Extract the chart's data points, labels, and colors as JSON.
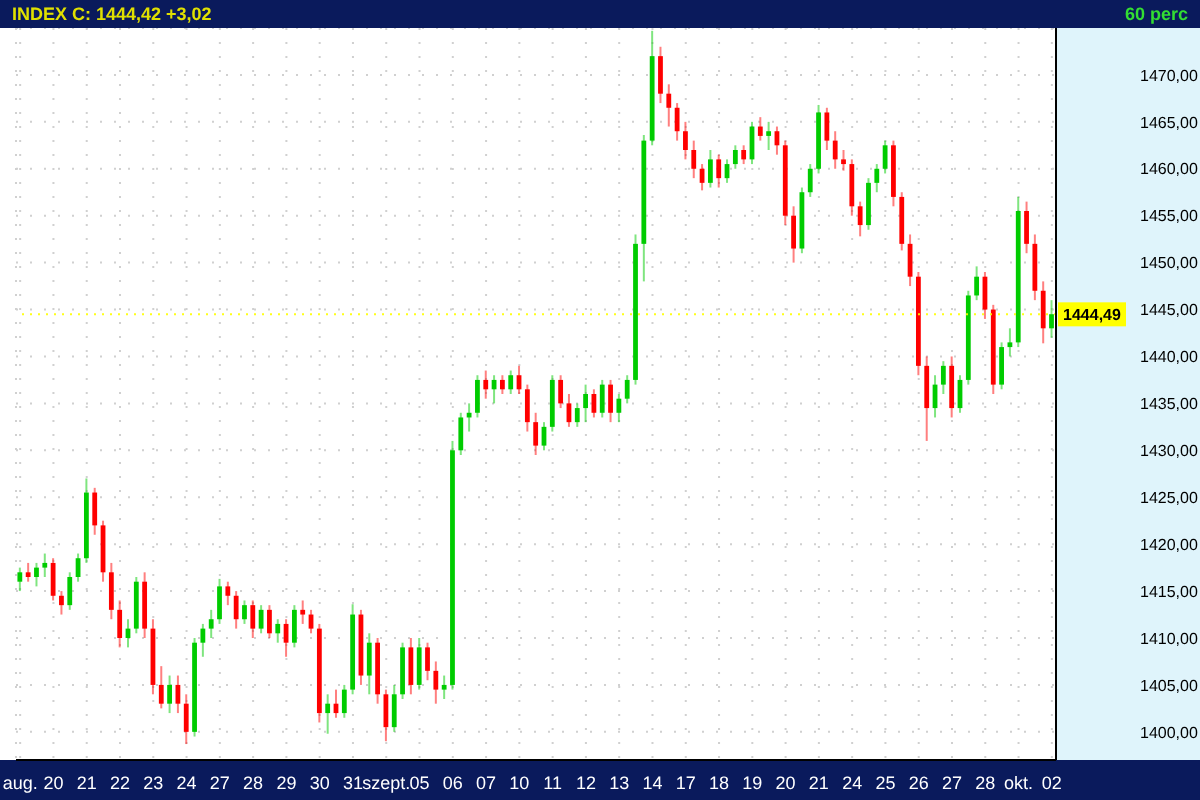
{
  "chart_data": {
    "type": "candlestick",
    "title": "INDEX C: 1444,42 +3,02",
    "subtitle": "60 perc",
    "categories": [
      "aug.",
      null,
      null,
      null,
      "20",
      null,
      null,
      null,
      "21",
      null,
      null,
      null,
      "22",
      null,
      null,
      null,
      "23",
      null,
      null,
      null,
      "24",
      null,
      null,
      null,
      "27",
      null,
      null,
      null,
      "28",
      null,
      null,
      null,
      "29",
      null,
      null,
      null,
      "30",
      null,
      null,
      null,
      "31",
      null,
      null,
      null,
      "szept.",
      null,
      null,
      null,
      "05",
      null,
      null,
      null,
      "06",
      null,
      null,
      null,
      "07",
      null,
      null,
      null,
      "10",
      null,
      null,
      null,
      "11",
      null,
      null,
      null,
      "12",
      null,
      null,
      null,
      "13",
      null,
      null,
      null,
      "14",
      null,
      null,
      null,
      "17",
      null,
      null,
      null,
      "18",
      null,
      null,
      null,
      "19",
      null,
      null,
      null,
      "20",
      null,
      null,
      null,
      "21",
      null,
      null,
      null,
      "24",
      null,
      null,
      null,
      "25",
      null,
      null,
      null,
      "26",
      null,
      null,
      null,
      "27",
      null,
      null,
      null,
      "28",
      null,
      null,
      null,
      "okt.",
      null,
      null,
      null,
      "02"
    ],
    "ohlc": [
      [
        1416,
        1417.5,
        1415,
        1417
      ],
      [
        1417,
        1418,
        1416,
        1416.5
      ],
      [
        1416.5,
        1418,
        1415.5,
        1417.5
      ],
      [
        1417.5,
        1419,
        1416.5,
        1418
      ],
      [
        1418,
        1418.5,
        1414,
        1414.5
      ],
      [
        1414.5,
        1415,
        1412.5,
        1413.5
      ],
      [
        1413.5,
        1417,
        1413,
        1416.5
      ],
      [
        1416.5,
        1419,
        1416,
        1418.5
      ],
      [
        1418.5,
        1427,
        1418,
        1425.5
      ],
      [
        1425.5,
        1426,
        1421,
        1422
      ],
      [
        1422,
        1422.5,
        1416,
        1417
      ],
      [
        1417,
        1418,
        1412,
        1413
      ],
      [
        1413,
        1414,
        1409,
        1410
      ],
      [
        1410,
        1412,
        1409,
        1411
      ],
      [
        1411,
        1416.5,
        1410.5,
        1416
      ],
      [
        1416,
        1417,
        1410,
        1411
      ],
      [
        1411,
        1412,
        1404,
        1405
      ],
      [
        1405,
        1407,
        1402.5,
        1403
      ],
      [
        1403,
        1406,
        1402,
        1405
      ],
      [
        1405,
        1406,
        1402,
        1403
      ],
      [
        1403,
        1404,
        1398.7,
        1400
      ],
      [
        1400,
        1410,
        1399.5,
        1409.5
      ],
      [
        1409.5,
        1411.5,
        1408,
        1411
      ],
      [
        1411,
        1413,
        1410,
        1412
      ],
      [
        1412,
        1416.3,
        1411.5,
        1415.5
      ],
      [
        1415.5,
        1416,
        1413.5,
        1414.5
      ],
      [
        1414.5,
        1415,
        1411,
        1412
      ],
      [
        1412,
        1414,
        1411.5,
        1413.5
      ],
      [
        1413.5,
        1414,
        1410,
        1411
      ],
      [
        1411,
        1413.5,
        1410.5,
        1413
      ],
      [
        1413,
        1413.5,
        1410,
        1410.5
      ],
      [
        1410.5,
        1412,
        1409.5,
        1411.5
      ],
      [
        1411.5,
        1412,
        1408,
        1409.5
      ],
      [
        1409.5,
        1413.5,
        1409,
        1413
      ],
      [
        1413,
        1414,
        1411.5,
        1412.5
      ],
      [
        1412.5,
        1413,
        1410.5,
        1411
      ],
      [
        1411,
        1411.5,
        1401,
        1402
      ],
      [
        1402,
        1404,
        1399.8,
        1403
      ],
      [
        1403,
        1404.5,
        1401.5,
        1402
      ],
      [
        1402,
        1405,
        1401.5,
        1404.5
      ],
      [
        1404.5,
        1413.6,
        1404,
        1412.5
      ],
      [
        1412.5,
        1413,
        1405,
        1406
      ],
      [
        1406,
        1410.5,
        1404,
        1409.5
      ],
      [
        1409.5,
        1410,
        1403,
        1404
      ],
      [
        1404,
        1404.5,
        1399,
        1400.5
      ],
      [
        1400.5,
        1405,
        1400,
        1404
      ],
      [
        1404,
        1409.5,
        1403.5,
        1409
      ],
      [
        1409,
        1410,
        1404,
        1405
      ],
      [
        1405,
        1410,
        1404.5,
        1409
      ],
      [
        1409,
        1409.5,
        1405.5,
        1406.5
      ],
      [
        1406.5,
        1407.5,
        1403,
        1404.5
      ],
      [
        1404.5,
        1406,
        1403.5,
        1405
      ],
      [
        1405,
        1431,
        1404.5,
        1430
      ],
      [
        1430,
        1434,
        1429.5,
        1433.5
      ],
      [
        1433.5,
        1435,
        1432,
        1434
      ],
      [
        1434,
        1438,
        1433.5,
        1437.5
      ],
      [
        1437.5,
        1438.5,
        1435.5,
        1436.5
      ],
      [
        1436.5,
        1438,
        1435,
        1437.5
      ],
      [
        1437.5,
        1438,
        1436,
        1436.5
      ],
      [
        1436.5,
        1438.5,
        1436,
        1438
      ],
      [
        1438,
        1439,
        1436,
        1436.5
      ],
      [
        1436.5,
        1437,
        1432,
        1433
      ],
      [
        1433,
        1434,
        1429.5,
        1430.5
      ],
      [
        1430.5,
        1433,
        1430,
        1432.5
      ],
      [
        1432.5,
        1438,
        1432,
        1437.5
      ],
      [
        1437.5,
        1438,
        1434.5,
        1435
      ],
      [
        1435,
        1436,
        1432.5,
        1433
      ],
      [
        1433,
        1435,
        1432.5,
        1434.5
      ],
      [
        1434.5,
        1437,
        1433,
        1436
      ],
      [
        1436,
        1436.5,
        1433.5,
        1434
      ],
      [
        1434,
        1437.5,
        1433.5,
        1437
      ],
      [
        1437,
        1437.5,
        1433,
        1434
      ],
      [
        1434,
        1436,
        1433,
        1435.5
      ],
      [
        1435.5,
        1438,
        1435,
        1437.5
      ],
      [
        1437.5,
        1453,
        1437,
        1452
      ],
      [
        1452,
        1463.6,
        1448,
        1463
      ],
      [
        1463,
        1474.7,
        1462.5,
        1472
      ],
      [
        1472,
        1473,
        1467,
        1468
      ],
      [
        1468,
        1469,
        1464.5,
        1466.5
      ],
      [
        1466.5,
        1467,
        1463,
        1464
      ],
      [
        1464,
        1465,
        1461,
        1462
      ],
      [
        1462,
        1463,
        1459,
        1460
      ],
      [
        1460,
        1460.5,
        1457.7,
        1458.5
      ],
      [
        1458.5,
        1462,
        1458,
        1461
      ],
      [
        1461,
        1461.5,
        1458,
        1459
      ],
      [
        1459,
        1461,
        1458.5,
        1460.5
      ],
      [
        1460.5,
        1462.5,
        1460,
        1462
      ],
      [
        1462,
        1462.5,
        1460.5,
        1461
      ],
      [
        1461,
        1465,
        1460.5,
        1464.5
      ],
      [
        1464.5,
        1465.5,
        1463,
        1463.5
      ],
      [
        1463.5,
        1465,
        1462,
        1464
      ],
      [
        1464,
        1464.5,
        1461.5,
        1462.5
      ],
      [
        1462.5,
        1463,
        1454,
        1455
      ],
      [
        1455,
        1456,
        1450,
        1451.5
      ],
      [
        1451.5,
        1458,
        1451,
        1457.5
      ],
      [
        1457.5,
        1460.5,
        1457,
        1460
      ],
      [
        1460,
        1466.8,
        1459.5,
        1466
      ],
      [
        1466,
        1466.5,
        1462,
        1463
      ],
      [
        1463,
        1464,
        1460,
        1461
      ],
      [
        1461,
        1462,
        1459.8,
        1460.5
      ],
      [
        1460.5,
        1461,
        1455,
        1456
      ],
      [
        1456,
        1456.5,
        1452.8,
        1454
      ],
      [
        1454,
        1459,
        1453.5,
        1458.5
      ],
      [
        1458.5,
        1460.5,
        1457.5,
        1460
      ],
      [
        1460,
        1463,
        1459.5,
        1462.5
      ],
      [
        1462.5,
        1463,
        1456,
        1457
      ],
      [
        1457,
        1457.5,
        1451.3,
        1452
      ],
      [
        1452,
        1453,
        1447.5,
        1448.5
      ],
      [
        1448.5,
        1449,
        1438,
        1439
      ],
      [
        1439,
        1440,
        1431,
        1434.5
      ],
      [
        1434.5,
        1438,
        1433.5,
        1437
      ],
      [
        1437,
        1439.5,
        1436,
        1439
      ],
      [
        1439,
        1440,
        1433.5,
        1434.5
      ],
      [
        1434.5,
        1438,
        1434,
        1437.5
      ],
      [
        1437.5,
        1447,
        1437,
        1446.5
      ],
      [
        1446.5,
        1449.6,
        1446,
        1448.5
      ],
      [
        1448.5,
        1449,
        1444,
        1445
      ],
      [
        1445,
        1445.5,
        1436,
        1437
      ],
      [
        1437,
        1441.5,
        1436.5,
        1441
      ],
      [
        1441,
        1443,
        1440,
        1441.5
      ],
      [
        1441.5,
        1457,
        1441,
        1455.5
      ],
      [
        1455.5,
        1456.5,
        1451,
        1452
      ],
      [
        1452,
        1453,
        1446,
        1447
      ],
      [
        1447,
        1448,
        1441.4,
        1443
      ],
      [
        1443,
        1446,
        1442,
        1444.5
      ]
    ],
    "colors": [
      "#00cc00",
      "#ff0000",
      "#00cc00",
      "#00cc00",
      "#ff0000",
      "#ff0000",
      "#00cc00",
      "#00cc00",
      "#00cc00",
      "#ff0000",
      "#ff0000",
      "#ff0000",
      "#ff0000",
      "#00cc00",
      "#00cc00",
      "#ff0000",
      "#ff0000",
      "#ff0000",
      "#00cc00",
      "#ff0000",
      "#ff0000",
      "#00cc00",
      "#00cc00",
      "#00cc00",
      "#00cc00",
      "#ff0000",
      "#ff0000",
      "#00cc00",
      "#ff0000",
      "#00cc00",
      "#ff0000",
      "#00cc00",
      "#ff0000",
      "#00cc00",
      "#ff0000",
      "#ff0000",
      "#ff0000",
      "#00cc00",
      "#ff0000",
      "#00cc00",
      "#00cc00",
      "#ff0000",
      "#00cc00",
      "#ff0000",
      "#ff0000",
      "#00cc00",
      "#00cc00",
      "#ff0000",
      "#00cc00",
      "#ff0000",
      "#ff0000",
      "#00cc00",
      "#00cc00",
      "#00cc00",
      "#00cc00",
      "#00cc00",
      "#ff0000",
      "#00cc00",
      "#ff0000",
      "#00cc00",
      "#ff0000",
      "#ff0000",
      "#ff0000",
      "#00cc00",
      "#00cc00",
      "#ff0000",
      "#ff0000",
      "#00cc00",
      "#00cc00",
      "#ff0000",
      "#00cc00",
      "#ff0000",
      "#00cc00",
      "#00cc00",
      "#00cc00",
      "#00cc00",
      "#00cc00",
      "#ff0000",
      "#ff0000",
      "#ff0000",
      "#ff0000",
      "#ff0000",
      "#ff0000",
      "#00cc00",
      "#ff0000",
      "#00cc00",
      "#00cc00",
      "#ff0000",
      "#00cc00",
      "#ff0000",
      "#00cc00",
      "#ff0000",
      "#ff0000",
      "#ff0000",
      "#00cc00",
      "#00cc00",
      "#00cc00",
      "#ff0000",
      "#ff0000",
      "#ff0000",
      "#ff0000",
      "#ff0000",
      "#00cc00",
      "#00cc00",
      "#00cc00",
      "#ff0000",
      "#ff0000",
      "#ff0000",
      "#ff0000",
      "#ff0000",
      "#00cc00",
      "#00cc00",
      "#ff0000",
      "#00cc00",
      "#00cc00",
      "#00cc00",
      "#ff0000",
      "#ff0000",
      "#00cc00",
      "#00cc00",
      "#00cc00",
      "#ff0000",
      "#ff0000",
      "#ff0000",
      "#00cc00"
    ],
    "ylim": [
      1397,
      1475
    ],
    "yticks": [
      {
        "value": 1400,
        "label": "1400,00"
      },
      {
        "value": 1405,
        "label": "1405,00"
      },
      {
        "value": 1410,
        "label": "1410,00"
      },
      {
        "value": 1415,
        "label": "1415,00"
      },
      {
        "value": 1420,
        "label": "1420,00"
      },
      {
        "value": 1425,
        "label": "1425,00"
      },
      {
        "value": 1430,
        "label": "1430,00"
      },
      {
        "value": 1435,
        "label": "1435,00"
      },
      {
        "value": 1440,
        "label": "1440,00"
      },
      {
        "value": 1445,
        "label": "1445,00"
      },
      {
        "value": 1450,
        "label": "1450,00"
      },
      {
        "value": 1455,
        "label": "1455,00"
      },
      {
        "value": 1460,
        "label": "1460,00"
      },
      {
        "value": 1465,
        "label": "1465,00"
      },
      {
        "value": 1470,
        "label": "1470,00"
      }
    ],
    "ref_lines": [
      {
        "axis": "y",
        "value": 1444.49,
        "label": "1444,49",
        "color": "#ffff00"
      }
    ],
    "grid": true,
    "legend": false
  }
}
